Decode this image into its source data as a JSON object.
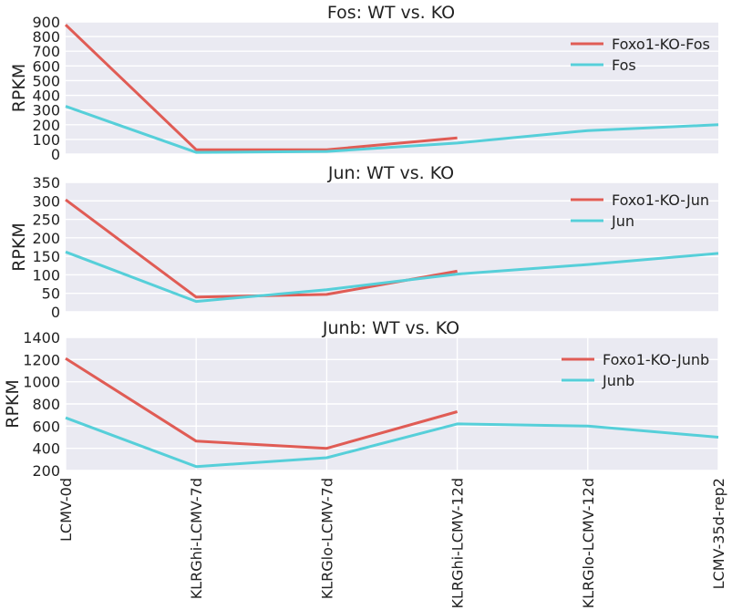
{
  "chart_data": {
    "type": "line",
    "x_categories": [
      "LCMV-0d",
      "KLRGhi-LCMV-7d",
      "KLRGlo-LCMV-7d",
      "KLRGhi-LCMV-12d",
      "KLRGlo-LCMV-12d",
      "LCMV-35d-rep2"
    ],
    "grid": true,
    "colors": {
      "ko": "#e05c55",
      "wt": "#56cfd9",
      "background": "#eaeaf2",
      "grid": "#ffffff"
    },
    "panels": [
      {
        "title": "Fos: WT vs. KO",
        "ylabel": "RPKM",
        "ylim": [
          0,
          900
        ],
        "yticks": [
          0,
          100,
          200,
          300,
          400,
          500,
          600,
          700,
          800,
          900
        ],
        "legend_position": "top-right",
        "series": [
          {
            "name": "Foxo1-KO-Fos",
            "role": "ko",
            "values": [
              880,
              30,
              30,
              110,
              null,
              null
            ]
          },
          {
            "name": "Fos",
            "role": "wt",
            "values": [
              325,
              12,
              18,
              75,
              160,
              200
            ]
          }
        ]
      },
      {
        "title": "Jun: WT vs. KO",
        "ylabel": "RPKM",
        "ylim": [
          0,
          350
        ],
        "yticks": [
          0,
          50,
          100,
          150,
          200,
          250,
          300,
          350
        ],
        "legend_position": "top-right",
        "series": [
          {
            "name": "Foxo1-KO-Jun",
            "role": "ko",
            "values": [
              303,
              40,
              47,
              110,
              null,
              null
            ]
          },
          {
            "name": "Jun",
            "role": "wt",
            "values": [
              162,
              28,
              60,
              102,
              128,
              158
            ]
          }
        ]
      },
      {
        "title": "Junb: WT vs. KO",
        "ylabel": "RPKM",
        "ylim": [
          200,
          1400
        ],
        "yticks": [
          200,
          400,
          600,
          800,
          1000,
          1200,
          1400
        ],
        "legend_position": "top-right",
        "series": [
          {
            "name": "Foxo1-KO-Junb",
            "role": "ko",
            "values": [
              1210,
              465,
              400,
              730,
              null,
              null
            ]
          },
          {
            "name": "Junb",
            "role": "wt",
            "values": [
              675,
              235,
              315,
              620,
              600,
              500
            ]
          }
        ]
      }
    ]
  }
}
